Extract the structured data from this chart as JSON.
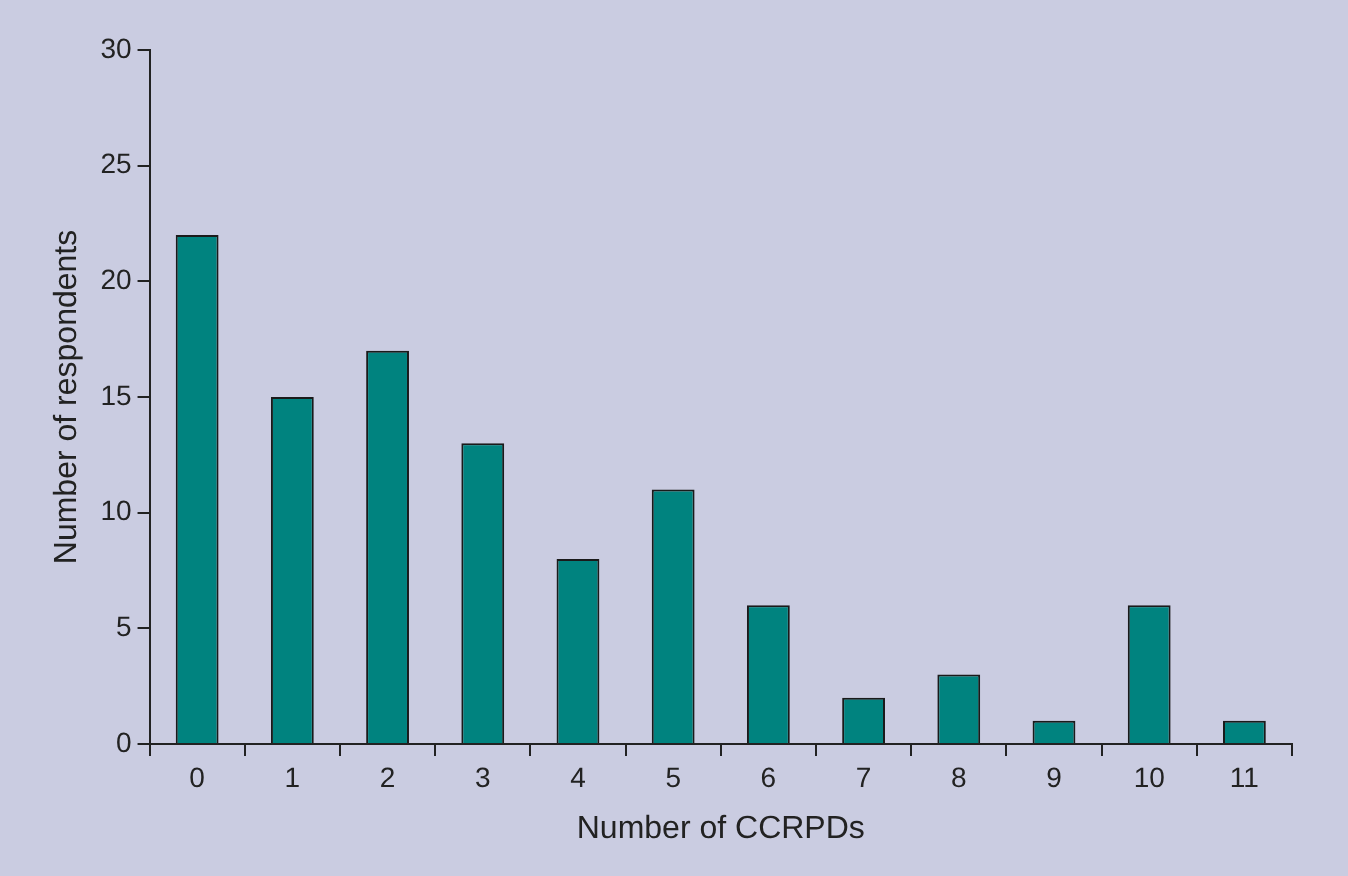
{
  "chart_data": {
    "type": "bar",
    "xlabel": "Number of CCRPDs",
    "ylabel": "Number of respondents",
    "categories": [
      "0",
      "1",
      "2",
      "3",
      "4",
      "5",
      "6",
      "7",
      "8",
      "9",
      "10",
      "11"
    ],
    "values": [
      22,
      15,
      17,
      13,
      8,
      11,
      6,
      2,
      3,
      1,
      6,
      1
    ],
    "color": "#00837f",
    "ylim": [
      0,
      30
    ],
    "yticks": [
      0,
      5,
      10,
      15,
      20,
      25,
      30
    ],
    "grid": false,
    "legend": false
  }
}
